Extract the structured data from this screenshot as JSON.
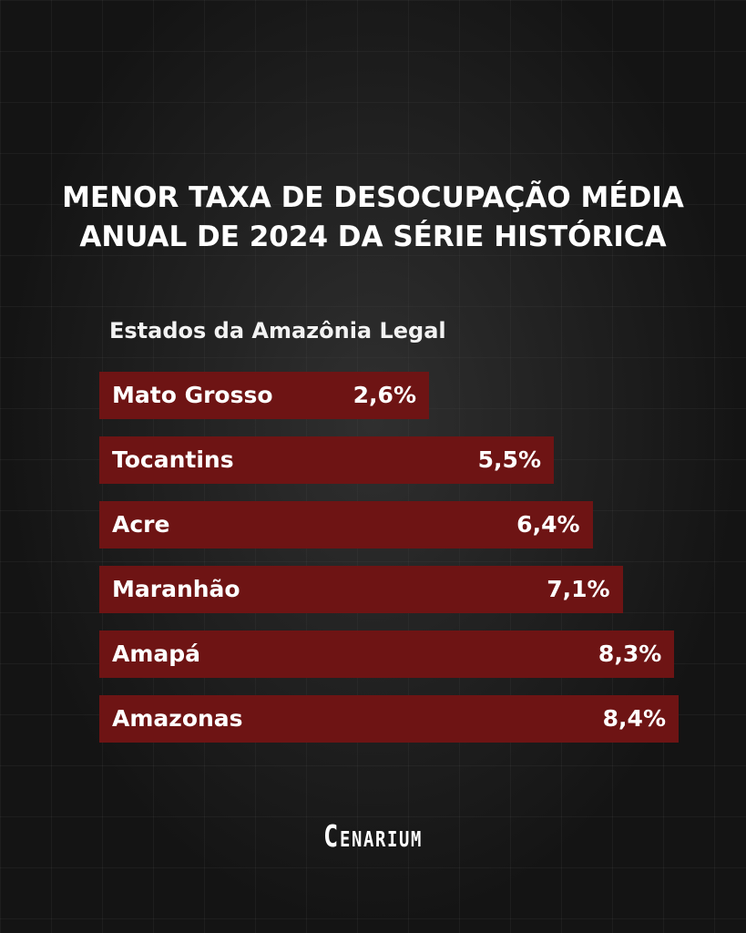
{
  "chart_data": {
    "type": "bar",
    "orientation": "horizontal",
    "title_lines": [
      "MENOR TAXA DE DESOCUPAÇÃO MÉDIA",
      "ANUAL DE 2024 DA SÉRIE HISTÓRICA"
    ],
    "subtitle": "Estados da Amazônia Legal",
    "categories": [
      "Mato Grosso",
      "Tocantins",
      "Acre",
      "Maranhão",
      "Amapá",
      "Amazonas"
    ],
    "values": [
      2.6,
      5.5,
      6.4,
      7.1,
      8.3,
      8.4
    ],
    "value_labels": [
      "2,6%",
      "5,5%",
      "6,4%",
      "7,1%",
      "8,3%",
      "8,4%"
    ],
    "unit": "%",
    "bar_color": "#6e1414",
    "background_color": "#141414",
    "grid": false,
    "legend": "none"
  },
  "brand": {
    "logo_text": "Cenarium"
  }
}
